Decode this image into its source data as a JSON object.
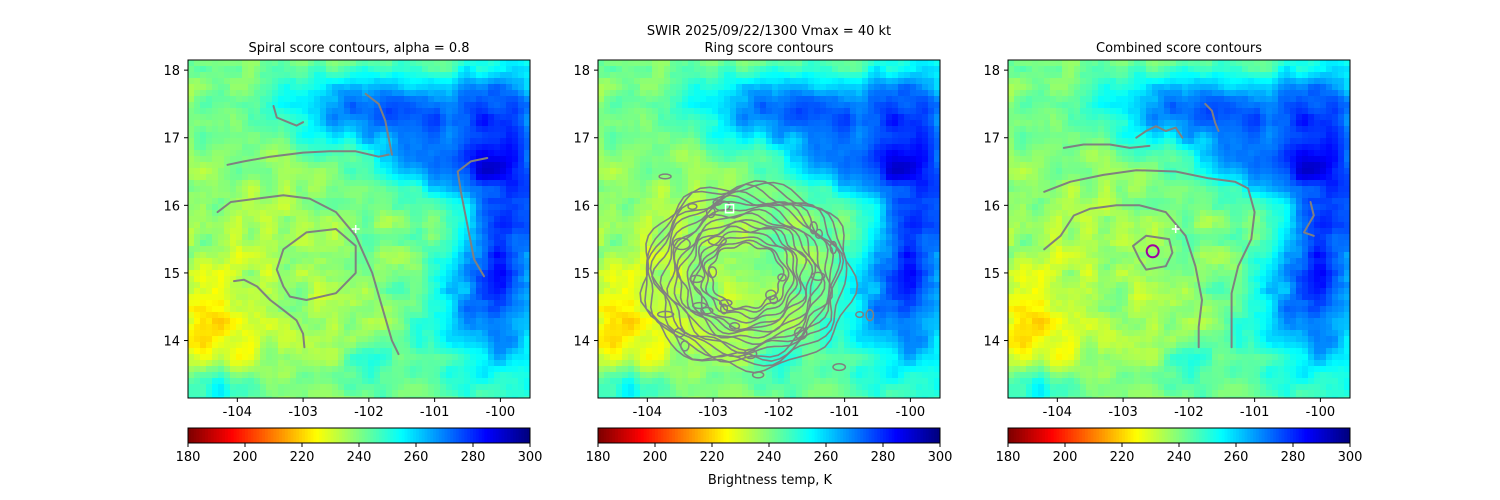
{
  "figure": {
    "suptitle_line1": "SWIR  2025/09/22/1300    Vmax = 40 kt",
    "colorbar_label": "Brightness temp, K",
    "colormap": "jet_r"
  },
  "chart_data": [
    {
      "type": "heatmap",
      "title": "Spiral score contours, alpha =  0.8",
      "xlim": [
        -104.75,
        -99.55
      ],
      "ylim": [
        13.15,
        18.15
      ],
      "xticks": [
        "-104",
        "-103",
        "-102",
        "-101",
        "-100"
      ],
      "xtick_values": [
        -104,
        -103,
        -102,
        -101,
        -100
      ],
      "yticks": [
        "14",
        "15",
        "16",
        "17",
        "18"
      ],
      "ytick_values": [
        14,
        15,
        16,
        17,
        18
      ],
      "contour_color": "#808080",
      "markers": [
        {
          "shape": "plus",
          "lon": -102.2,
          "lat": 15.65,
          "color": "#ffffff"
        }
      ],
      "colorbar": {
        "min": 180,
        "max": 300,
        "ticks": [
          "180",
          "200",
          "220",
          "240",
          "260",
          "280",
          "300"
        ],
        "tick_values": [
          180,
          200,
          220,
          240,
          260,
          280,
          300
        ]
      }
    },
    {
      "type": "heatmap",
      "title": "Ring score contours",
      "xlim": [
        -104.75,
        -99.55
      ],
      "ylim": [
        13.15,
        18.15
      ],
      "xticks": [
        "-104",
        "-103",
        "-102",
        "-101",
        "-100"
      ],
      "xtick_values": [
        -104,
        -103,
        -102,
        -101,
        -100
      ],
      "yticks": [
        "14",
        "15",
        "16",
        "17",
        "18"
      ],
      "ytick_values": [
        14,
        15,
        16,
        17,
        18
      ],
      "contour_color": "#808080",
      "markers": [
        {
          "shape": "square",
          "lon": -102.75,
          "lat": 15.95,
          "color": "#ffffff"
        }
      ],
      "colorbar": {
        "min": 180,
        "max": 300,
        "ticks": [
          "180",
          "200",
          "220",
          "240",
          "260",
          "280",
          "300"
        ],
        "tick_values": [
          180,
          200,
          220,
          240,
          260,
          280,
          300
        ]
      }
    },
    {
      "type": "heatmap",
      "title": "Combined score contours",
      "xlim": [
        -104.75,
        -99.55
      ],
      "ylim": [
        13.15,
        18.15
      ],
      "xticks": [
        "-104",
        "-103",
        "-102",
        "-101",
        "-100"
      ],
      "xtick_values": [
        -104,
        -103,
        -102,
        -101,
        -100
      ],
      "yticks": [
        "14",
        "15",
        "16",
        "17",
        "18"
      ],
      "ytick_values": [
        14,
        15,
        16,
        17,
        18
      ],
      "contour_color": "#808080",
      "markers": [
        {
          "shape": "plus",
          "lon": -102.2,
          "lat": 15.65,
          "color": "#ffffff"
        },
        {
          "shape": "circle",
          "lon": -102.55,
          "lat": 15.32,
          "color": "#a000a0"
        }
      ],
      "colorbar": {
        "min": 180,
        "max": 300,
        "ticks": [
          "180",
          "200",
          "220",
          "240",
          "260",
          "280",
          "300"
        ],
        "tick_values": [
          180,
          200,
          220,
          240,
          260,
          280,
          300
        ]
      }
    }
  ]
}
